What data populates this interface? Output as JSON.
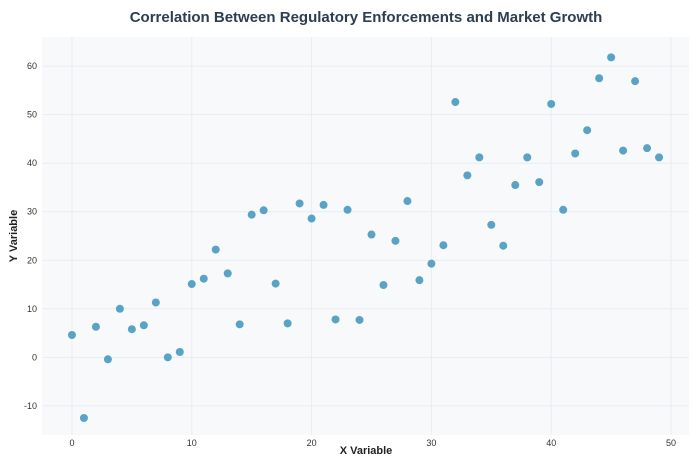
{
  "chart_data": {
    "type": "scatter",
    "title": "Correlation Between Regulatory Enforcements and Market Growth",
    "xlabel": "X Variable",
    "ylabel": "Y Variable",
    "xlim": [
      -2.5,
      51.5
    ],
    "ylim": [
      -16,
      66
    ],
    "xticks": [
      0,
      10,
      20,
      30,
      40,
      50
    ],
    "yticks": [
      -10,
      0,
      10,
      20,
      30,
      40,
      50,
      60
    ],
    "grid": true,
    "legend": "none",
    "colors": {
      "point": "#5ba3c6",
      "plot_bg": "#f7f9fb",
      "title": "#2c3e50"
    },
    "x": [
      0,
      1,
      2,
      3,
      4,
      5,
      6,
      7,
      8,
      9,
      10,
      11,
      12,
      13,
      14,
      15,
      16,
      17,
      18,
      19,
      20,
      21,
      22,
      23,
      24,
      25,
      26,
      27,
      28,
      29,
      30,
      31,
      32,
      33,
      34,
      35,
      36,
      37,
      38,
      39,
      40,
      41,
      42,
      43,
      44,
      45,
      46,
      47,
      48,
      49
    ],
    "y": [
      4.6,
      -12.5,
      6.3,
      -0.4,
      10,
      5.8,
      6.6,
      11.3,
      0,
      1.1,
      15.1,
      16.2,
      22.2,
      17.3,
      6.8,
      29.4,
      30.3,
      15.2,
      7,
      31.7,
      28.6,
      31.4,
      7.8,
      30.4,
      7.7,
      25.3,
      14.9,
      24,
      32.2,
      15.9,
      19.3,
      23.1,
      52.6,
      37.5,
      41.2,
      27.3,
      23,
      35.5,
      41.2,
      36.1,
      52.2,
      30.4,
      42,
      46.8,
      57.5,
      61.8,
      42.6,
      56.9,
      43.1,
      41.2
    ]
  }
}
